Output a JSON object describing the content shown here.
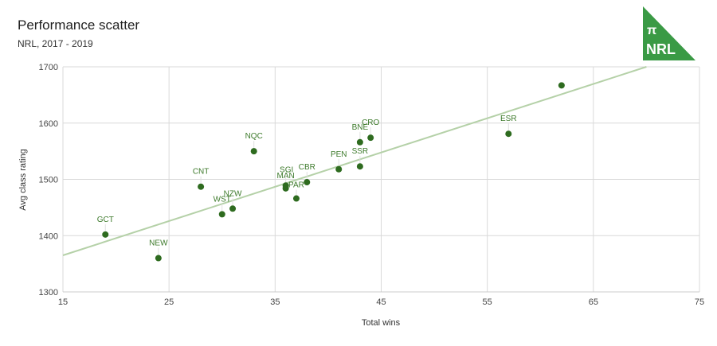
{
  "header": {
    "title": "Performance scatter",
    "subtitle": "NRL, 2017 - 2019"
  },
  "logo": {
    "symbol": "π",
    "text": "NRL",
    "color": "#3a9a45"
  },
  "colors": {
    "point": "#2e6b1f",
    "label": "#3d7a2b",
    "trendline": "#b5d1a8",
    "grid": "#d9d9d9"
  },
  "chart_data": {
    "type": "scatter",
    "title": "Performance scatter",
    "subtitle": "NRL, 2017 - 2019",
    "xlabel": "Total wins",
    "ylabel": "Avg class rating",
    "xlim": [
      15,
      75
    ],
    "ylim": [
      1300,
      1700
    ],
    "xticks": [
      15,
      25,
      35,
      45,
      55,
      65,
      75
    ],
    "yticks": [
      1300,
      1400,
      1500,
      1600,
      1700
    ],
    "grid": true,
    "legend": "none",
    "points": [
      {
        "label": "GCT",
        "x": 19,
        "y": 1402
      },
      {
        "label": "NEW",
        "x": 24,
        "y": 1360
      },
      {
        "label": "CNT",
        "x": 28,
        "y": 1487
      },
      {
        "label": "WST",
        "x": 30,
        "y": 1438
      },
      {
        "label": "NZW",
        "x": 31,
        "y": 1448
      },
      {
        "label": "NQC",
        "x": 33,
        "y": 1550
      },
      {
        "label": "MAN",
        "x": 36,
        "y": 1484
      },
      {
        "label": "SGI",
        "x": 36,
        "y": 1489
      },
      {
        "label": "PAR",
        "x": 37,
        "y": 1466
      },
      {
        "label": "CBR",
        "x": 38,
        "y": 1495
      },
      {
        "label": "PEN",
        "x": 41,
        "y": 1518
      },
      {
        "label": "SSR",
        "x": 43,
        "y": 1523
      },
      {
        "label": "BNE",
        "x": 43,
        "y": 1566
      },
      {
        "label": "CRO",
        "x": 44,
        "y": 1574
      },
      {
        "label": "ESR",
        "x": 57,
        "y": 1581
      },
      {
        "label": "",
        "x": 62,
        "y": 1667
      }
    ],
    "trendline": {
      "type": "linear",
      "x0": 15,
      "y0": 1365,
      "x1": 70,
      "y1": 1700
    }
  }
}
